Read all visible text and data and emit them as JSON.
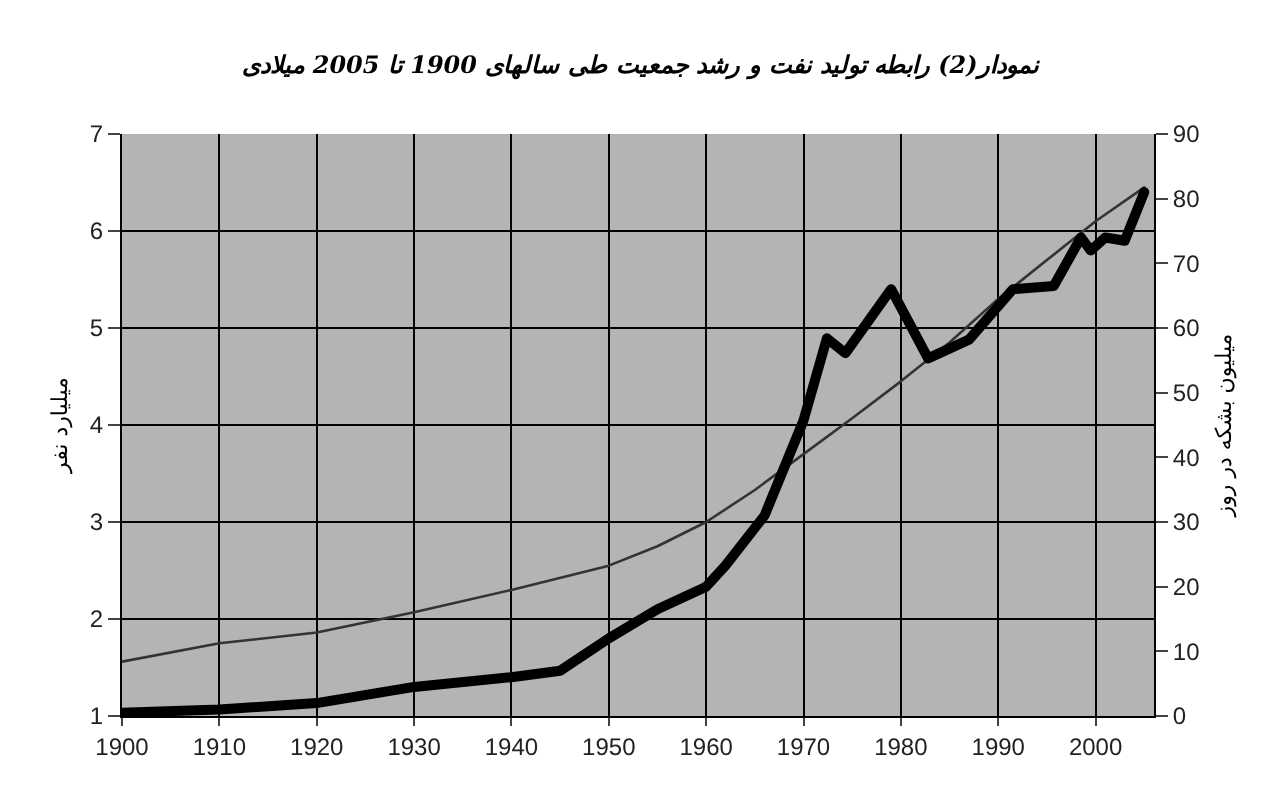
{
  "chart_data": {
    "type": "line",
    "title": "نمودار(2) رابطه تولید نفت و رشد جمعیت طی سالهای 1900 تا 2005 میلادی",
    "ylabel": "میلیارد نفر",
    "y2label": "میلیون بشکه در روز",
    "xlim": [
      1900,
      2006
    ],
    "xticks": [
      1900,
      1910,
      1920,
      1930,
      1940,
      1950,
      1960,
      1970,
      1980,
      1990,
      2000
    ],
    "ylim": [
      1,
      7
    ],
    "yticks": [
      1,
      2,
      3,
      4,
      5,
      6,
      7
    ],
    "y2lim": [
      0,
      90
    ],
    "y2ticks": [
      0,
      10,
      20,
      30,
      40,
      50,
      60,
      70,
      80,
      90
    ],
    "grid": true,
    "series": [
      {
        "color": "#333333",
        "x": [
          1900,
          1910,
          1920,
          1930,
          1940,
          1950,
          1955,
          1960,
          1965,
          1970,
          1975,
          1980,
          1985,
          1990,
          1995,
          2000,
          2005
        ],
        "values": [
          1.56,
          1.75,
          1.86,
          2.07,
          2.3,
          2.55,
          2.75,
          3.0,
          3.33,
          3.7,
          4.07,
          4.45,
          4.85,
          5.3,
          5.7,
          6.1,
          6.45
        ]
      },
      {
        "color": "#000000",
        "axis": "y2",
        "x": [
          1900,
          1910,
          1920,
          1930,
          1940,
          1945,
          1950,
          1955,
          1960,
          1962,
          1966,
          1970,
          1972.4,
          1974.3,
          1979,
          1982.8,
          1987,
          1991.5,
          1995.7,
          1998.5,
          1999.5,
          2001,
          2003,
          2005
        ],
        "values": [
          0.5,
          1,
          2,
          4.5,
          6,
          7,
          12,
          16.5,
          20,
          23.3,
          31,
          45.7,
          58.4,
          56.1,
          66,
          55.3,
          58.2,
          66,
          66.5,
          74,
          72,
          74,
          73.5,
          81
        ]
      }
    ]
  }
}
